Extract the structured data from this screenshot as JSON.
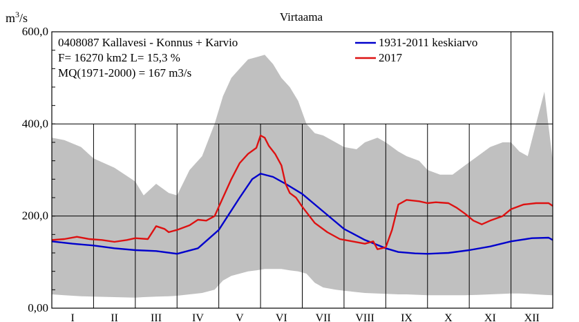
{
  "chart_data": {
    "type": "area",
    "title": "Virtaama",
    "ylabel_base": "m",
    "ylabel_sup": "3",
    "ylabel_rest": "/s",
    "ylim": [
      0,
      600
    ],
    "yticks": [
      {
        "value": 0,
        "label": "0,00"
      },
      {
        "value": 200,
        "label": "200,0"
      },
      {
        "value": 400,
        "label": "400,0"
      },
      {
        "value": 600,
        "label": "600,0"
      }
    ],
    "months": [
      "I",
      "II",
      "III",
      "IV",
      "V",
      "VI",
      "VII",
      "VIII",
      "IX",
      "X",
      "XI",
      "XII"
    ],
    "grid": true,
    "info_lines": [
      "0408087 Kallavesi - Konnus + Karvio",
      "F=  16270 km2 L=  15,3 %",
      "MQ(1971-2000) = 167 m3/s"
    ],
    "legend_position": "top-right",
    "envelope": {
      "color": "#c0c0c0",
      "x_month": [
        0,
        0.3,
        0.7,
        1.0,
        1.5,
        2.0,
        2.2,
        2.5,
        2.8,
        3.0,
        3.3,
        3.6,
        3.9,
        4.1,
        4.3,
        4.5,
        4.7,
        4.9,
        5.1,
        5.3,
        5.5,
        5.7,
        5.9,
        6.1,
        6.3,
        6.5,
        6.8,
        7.0,
        7.3,
        7.5,
        7.8,
        8.0,
        8.3,
        8.5,
        8.8,
        9.0,
        9.3,
        9.6,
        9.9,
        10.2,
        10.5,
        10.8,
        11.0,
        11.2,
        11.4,
        11.6,
        11.8,
        12.0
      ],
      "max": [
        370,
        365,
        350,
        325,
        305,
        275,
        245,
        270,
        250,
        245,
        300,
        330,
        400,
        460,
        500,
        520,
        540,
        545,
        550,
        530,
        500,
        480,
        450,
        400,
        380,
        375,
        360,
        350,
        345,
        360,
        370,
        360,
        340,
        330,
        320,
        300,
        290,
        290,
        310,
        330,
        350,
        360,
        360,
        340,
        330,
        400,
        470,
        320
      ],
      "min": [
        30,
        28,
        26,
        25,
        24,
        23,
        24,
        25,
        26,
        27,
        30,
        33,
        40,
        60,
        70,
        75,
        80,
        82,
        85,
        85,
        85,
        82,
        80,
        75,
        55,
        45,
        40,
        38,
        35,
        33,
        32,
        31,
        30,
        30,
        29,
        28,
        28,
        28,
        28,
        29,
        30,
        31,
        32,
        32,
        31,
        30,
        29,
        28
      ]
    },
    "series": [
      {
        "name": "1931-2011 keskiarvo",
        "color": "#0000cc",
        "x_month": [
          0,
          0.5,
          1.0,
          1.5,
          2.0,
          2.5,
          3.0,
          3.5,
          4.0,
          4.5,
          4.8,
          5.0,
          5.3,
          5.6,
          6.0,
          6.5,
          7.0,
          7.5,
          8.0,
          8.3,
          8.7,
          9.0,
          9.5,
          10.0,
          10.5,
          11.0,
          11.5,
          11.9,
          12.0
        ],
        "values": [
          145,
          140,
          136,
          130,
          126,
          124,
          118,
          130,
          170,
          240,
          280,
          292,
          285,
          270,
          248,
          210,
          172,
          148,
          130,
          122,
          119,
          118,
          120,
          126,
          134,
          145,
          152,
          153,
          148
        ]
      },
      {
        "name": "2017",
        "color": "#dd1111",
        "x_month": [
          0,
          0.3,
          0.6,
          0.9,
          1.2,
          1.5,
          1.8,
          2.0,
          2.3,
          2.5,
          2.7,
          2.8,
          3.0,
          3.3,
          3.5,
          3.7,
          3.9,
          4.1,
          4.3,
          4.5,
          4.7,
          4.9,
          5.0,
          5.1,
          5.2,
          5.35,
          5.5,
          5.6,
          5.7,
          5.85,
          6.0,
          6.3,
          6.6,
          6.9,
          7.2,
          7.5,
          7.7,
          7.8,
          8.0,
          8.15,
          8.3,
          8.5,
          8.8,
          9.0,
          9.2,
          9.5,
          9.7,
          9.9,
          10.1,
          10.3,
          10.5,
          10.8,
          11.0,
          11.3,
          11.6,
          11.9,
          12.0
        ],
        "values": [
          148,
          150,
          155,
          150,
          148,
          144,
          148,
          152,
          150,
          178,
          172,
          165,
          170,
          180,
          192,
          190,
          200,
          240,
          280,
          315,
          335,
          348,
          375,
          370,
          352,
          335,
          310,
          270,
          250,
          240,
          220,
          185,
          165,
          150,
          145,
          140,
          145,
          128,
          132,
          170,
          225,
          235,
          232,
          228,
          230,
          228,
          218,
          205,
          190,
          182,
          190,
          200,
          215,
          225,
          228,
          228,
          222
        ]
      }
    ]
  }
}
